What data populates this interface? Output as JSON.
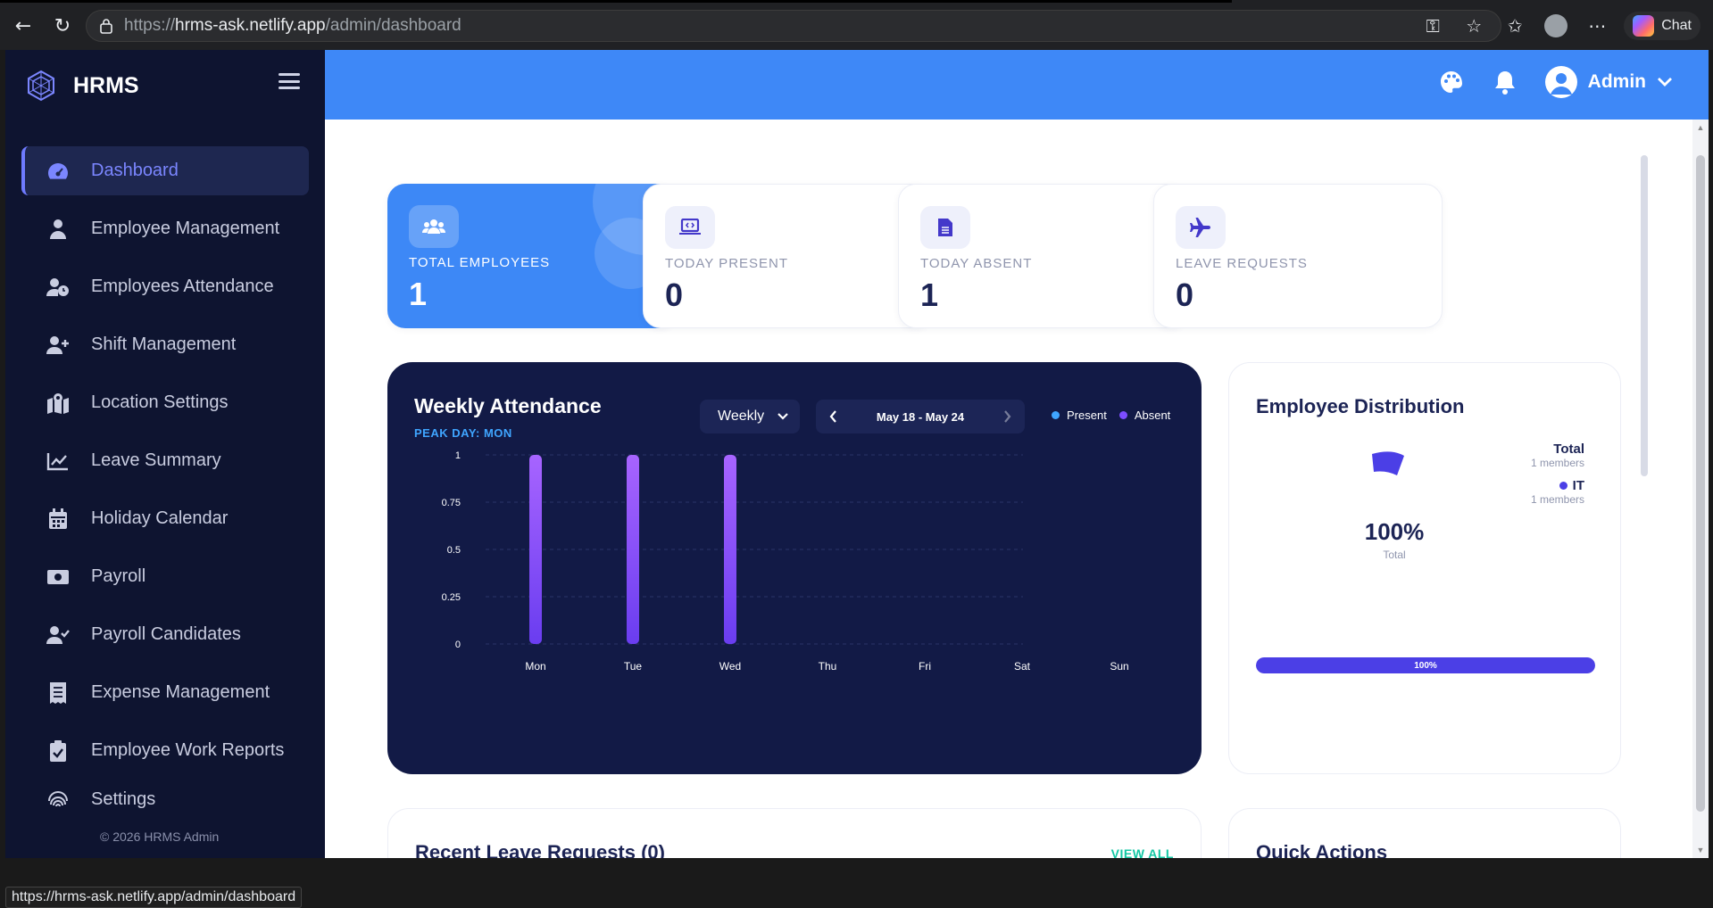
{
  "browser": {
    "url_prefix": "https://",
    "url_host": "hrms-ask.netlify.app",
    "url_path": "/admin/dashboard",
    "chat_label": "Chat",
    "status_url": "https://hrms-ask.netlify.app/admin/dashboard"
  },
  "sidebar": {
    "brand": "HRMS",
    "items": [
      {
        "label": "Dashboard",
        "icon": "gauge-icon"
      },
      {
        "label": "Employee Management",
        "icon": "user-tie-icon"
      },
      {
        "label": "Employees Attendance",
        "icon": "user-clock-icon"
      },
      {
        "label": "Shift Management",
        "icon": "user-plus-icon"
      },
      {
        "label": "Location Settings",
        "icon": "map-location-icon"
      },
      {
        "label": "Leave Summary",
        "icon": "chart-line-icon"
      },
      {
        "label": "Holiday Calendar",
        "icon": "calendar-icon"
      },
      {
        "label": "Payroll",
        "icon": "money-bill-icon"
      },
      {
        "label": "Payroll Candidates",
        "icon": "user-check-icon"
      },
      {
        "label": "Expense Management",
        "icon": "receipt-icon"
      },
      {
        "label": "Employee Work Reports",
        "icon": "clipboard-check-icon"
      },
      {
        "label": "Settings",
        "icon": "fingerprint-icon"
      }
    ],
    "footer": "© 2026 HRMS Admin"
  },
  "header": {
    "user_name": "Admin"
  },
  "stats": [
    {
      "label": "TOTAL EMPLOYEES",
      "value": "1"
    },
    {
      "label": "TODAY PRESENT",
      "value": "0"
    },
    {
      "label": "TODAY ABSENT",
      "value": "1"
    },
    {
      "label": "LEAVE REQUESTS",
      "value": "0"
    }
  ],
  "weekly": {
    "title": "Weekly Attendance",
    "peak": "PEAK DAY: MON",
    "period": "Weekly",
    "range": "May 18 - May 24",
    "legend_present": "Present",
    "legend_absent": "Absent"
  },
  "chart_data": {
    "type": "bar",
    "categories": [
      "Mon",
      "Tue",
      "Wed",
      "Thu",
      "Fri",
      "Sat",
      "Sun"
    ],
    "series": [
      {
        "name": "Present",
        "values": [
          0,
          0,
          0,
          0,
          0,
          0,
          0
        ],
        "color": "#3fa5ff"
      },
      {
        "name": "Absent",
        "values": [
          1,
          1,
          1,
          0,
          0,
          0,
          0
        ],
        "color": "#7c4dff"
      }
    ],
    "ylim": [
      0,
      1
    ],
    "yticks": [
      "0",
      "0.25",
      "0.5",
      "0.75",
      "1"
    ],
    "grid": true,
    "legend": "top-right"
  },
  "distribution": {
    "title": "Employee Distribution",
    "percent": "100%",
    "percent_label": "Total",
    "legend": [
      {
        "name": "Total",
        "sub": "1 members"
      },
      {
        "name": "IT",
        "sub": "1 members",
        "color": "#4b3fe6"
      }
    ],
    "progress_label": "100%",
    "progress": 1.0
  },
  "bottom": {
    "leave_title": "Recent Leave Requests (0)",
    "view_all": "VIEW ALL",
    "quick_title": "Quick Actions"
  },
  "colors": {
    "header": "#3e88f7",
    "sidebar": "#0e1430",
    "accent": "#6f7bff",
    "chart_bg": "#121a46"
  }
}
